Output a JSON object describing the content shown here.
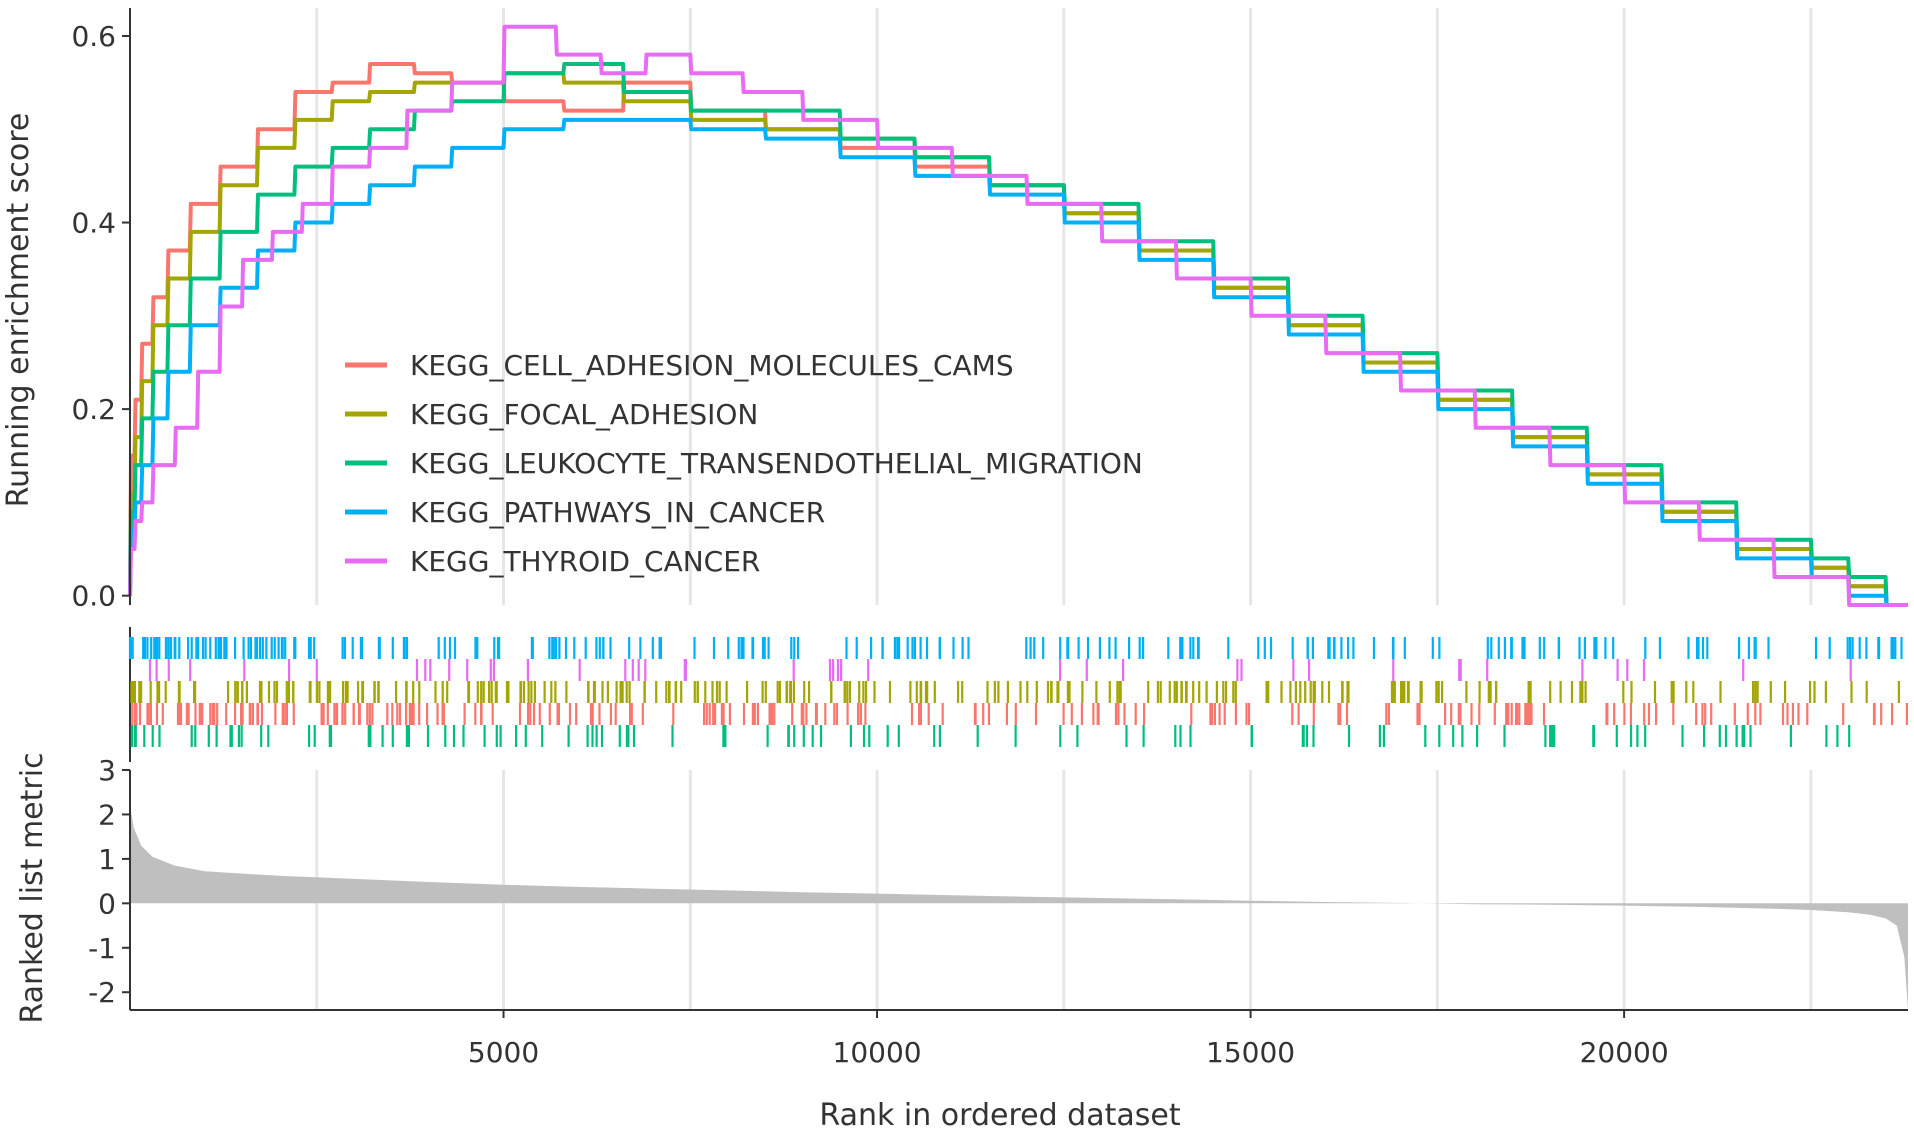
{
  "chart_data": {
    "type": "line",
    "xlabel": "Rank in ordered dataset",
    "xlim": [
      0,
      23800
    ],
    "x_ticks": [
      5000,
      10000,
      15000,
      20000
    ],
    "x_tick_labels": [
      "5000",
      "10000",
      "15000",
      "20000"
    ],
    "legend_placement": "center-left",
    "panels": {
      "enrichment": {
        "ylabel": "Running enrichment score",
        "ylim": [
          -0.01,
          0.63
        ],
        "y_ticks": [
          0.0,
          0.2,
          0.4,
          0.6
        ],
        "y_tick_labels": [
          "0.0",
          "0.2",
          "0.4",
          "0.6"
        ]
      },
      "metric": {
        "ylabel": "Ranked list metric",
        "ylim": [
          -2.4,
          3.0
        ],
        "y_ticks": [
          3,
          2,
          1,
          0,
          -1,
          -2
        ],
        "y_tick_labels": [
          "3",
          "2",
          "1",
          "0",
          "-1",
          "-2"
        ],
        "fill_color": "#bfbfbf",
        "x": [
          0,
          50,
          150,
          300,
          600,
          1000,
          2000,
          3000,
          4000,
          5000,
          6000,
          7000,
          8000,
          9000,
          10000,
          11000,
          12000,
          13000,
          14000,
          15000,
          16000,
          17000,
          18000,
          19000,
          20000,
          21000,
          22000,
          22500,
          23000,
          23300,
          23500,
          23650,
          23750,
          23800
        ],
        "values": [
          2.2,
          1.7,
          1.3,
          1.05,
          0.85,
          0.72,
          0.62,
          0.55,
          0.48,
          0.42,
          0.37,
          0.33,
          0.29,
          0.25,
          0.22,
          0.18,
          0.15,
          0.12,
          0.09,
          0.06,
          0.03,
          0.01,
          -0.02,
          -0.03,
          -0.05,
          -0.08,
          -0.12,
          -0.15,
          -0.2,
          -0.26,
          -0.34,
          -0.5,
          -1.2,
          -2.4
        ]
      }
    },
    "series": [
      {
        "name": "KEGG_CELL_ADHESION_MOLECULES_CAMS",
        "color": "#f8766d",
        "x": [
          0,
          60,
          150,
          300,
          500,
          800,
          1200,
          1700,
          2200,
          2700,
          3200,
          3800,
          4300,
          5000,
          5800,
          6600,
          7500,
          8500,
          9500,
          10500,
          11500,
          12500,
          13500,
          14500,
          15500,
          16500,
          17500,
          18500,
          19500,
          20500,
          21500,
          22500,
          23000,
          23500,
          23800
        ],
        "values": [
          0.0,
          0.15,
          0.21,
          0.27,
          0.32,
          0.37,
          0.42,
          0.46,
          0.5,
          0.54,
          0.55,
          0.57,
          0.56,
          0.55,
          0.53,
          0.52,
          0.55,
          0.52,
          0.5,
          0.48,
          0.46,
          0.44,
          0.41,
          0.37,
          0.33,
          0.29,
          0.25,
          0.21,
          0.17,
          0.13,
          0.09,
          0.05,
          0.03,
          0.01,
          -0.01
        ]
      },
      {
        "name": "KEGG_FOCAL_ADHESION",
        "color": "#a3a500",
        "x": [
          0,
          60,
          150,
          300,
          500,
          800,
          1200,
          1700,
          2200,
          2700,
          3200,
          3800,
          4300,
          5000,
          5800,
          6600,
          7500,
          8500,
          9500,
          10500,
          11500,
          12500,
          13500,
          14500,
          15500,
          16500,
          17500,
          18500,
          19500,
          20500,
          21500,
          22500,
          23000,
          23500,
          23800
        ],
        "values": [
          0.0,
          0.11,
          0.17,
          0.23,
          0.29,
          0.34,
          0.39,
          0.44,
          0.48,
          0.51,
          0.53,
          0.54,
          0.55,
          0.55,
          0.56,
          0.55,
          0.53,
          0.51,
          0.5,
          0.49,
          0.47,
          0.44,
          0.41,
          0.37,
          0.33,
          0.29,
          0.25,
          0.21,
          0.17,
          0.13,
          0.09,
          0.05,
          0.03,
          0.01,
          -0.01
        ]
      },
      {
        "name": "KEGG_LEUKOCYTE_TRANSENDOTHELIAL_MIGRATION",
        "color": "#00bf7d",
        "x": [
          0,
          60,
          150,
          300,
          500,
          800,
          1200,
          1700,
          2200,
          2700,
          3200,
          3800,
          4300,
          5000,
          5800,
          6600,
          7500,
          8500,
          9500,
          10500,
          11500,
          12500,
          13500,
          14500,
          15500,
          16500,
          17500,
          18500,
          19500,
          20500,
          21500,
          22500,
          23000,
          23500,
          23800
        ],
        "values": [
          0.0,
          0.09,
          0.14,
          0.19,
          0.24,
          0.29,
          0.34,
          0.39,
          0.43,
          0.46,
          0.48,
          0.5,
          0.52,
          0.53,
          0.56,
          0.57,
          0.54,
          0.52,
          0.52,
          0.49,
          0.47,
          0.44,
          0.42,
          0.38,
          0.34,
          0.3,
          0.26,
          0.22,
          0.18,
          0.14,
          0.1,
          0.06,
          0.04,
          0.02,
          -0.01
        ]
      },
      {
        "name": "KEGG_PATHWAYS_IN_CANCER",
        "color": "#00b0f6",
        "x": [
          0,
          60,
          150,
          300,
          500,
          800,
          1200,
          1700,
          2200,
          2700,
          3200,
          3800,
          4300,
          5000,
          5800,
          6600,
          7500,
          8500,
          9500,
          10500,
          11500,
          12500,
          13500,
          14500,
          15500,
          16500,
          17500,
          18500,
          19500,
          20500,
          21500,
          22500,
          23000,
          23500,
          23800
        ],
        "values": [
          0.0,
          0.07,
          0.1,
          0.14,
          0.19,
          0.24,
          0.29,
          0.33,
          0.37,
          0.4,
          0.42,
          0.44,
          0.46,
          0.48,
          0.5,
          0.51,
          0.51,
          0.5,
          0.49,
          0.47,
          0.45,
          0.43,
          0.4,
          0.36,
          0.32,
          0.28,
          0.24,
          0.2,
          0.16,
          0.12,
          0.08,
          0.04,
          0.02,
          0.0,
          -0.01
        ]
      },
      {
        "name": "KEGG_THYROID_CANCER",
        "color": "#e76bf3",
        "x": [
          0,
          60,
          150,
          300,
          600,
          900,
          1200,
          1500,
          1900,
          2300,
          2700,
          3200,
          3700,
          4300,
          5000,
          5700,
          6300,
          6900,
          7500,
          8200,
          9000,
          10000,
          11000,
          12000,
          13000,
          14000,
          15000,
          16000,
          17000,
          18000,
          19000,
          20000,
          21000,
          22000,
          23000,
          23800
        ],
        "values": [
          0.0,
          0.05,
          0.08,
          0.1,
          0.14,
          0.18,
          0.24,
          0.31,
          0.36,
          0.39,
          0.42,
          0.46,
          0.48,
          0.52,
          0.55,
          0.61,
          0.58,
          0.56,
          0.58,
          0.56,
          0.54,
          0.51,
          0.48,
          0.45,
          0.42,
          0.38,
          0.34,
          0.3,
          0.26,
          0.22,
          0.18,
          0.14,
          0.1,
          0.06,
          0.02,
          -0.01
        ]
      }
    ],
    "hit_rows_top_to_bottom": [
      "KEGG_PATHWAYS_IN_CANCER",
      "KEGG_THYROID_CANCER",
      "KEGG_FOCAL_ADHESION",
      "KEGG_CELL_ADHESION_MOLECULES_CAMS",
      "KEGG_LEUKOCYTE_TRANSENDOTHELIAL_MIGRATION"
    ]
  }
}
